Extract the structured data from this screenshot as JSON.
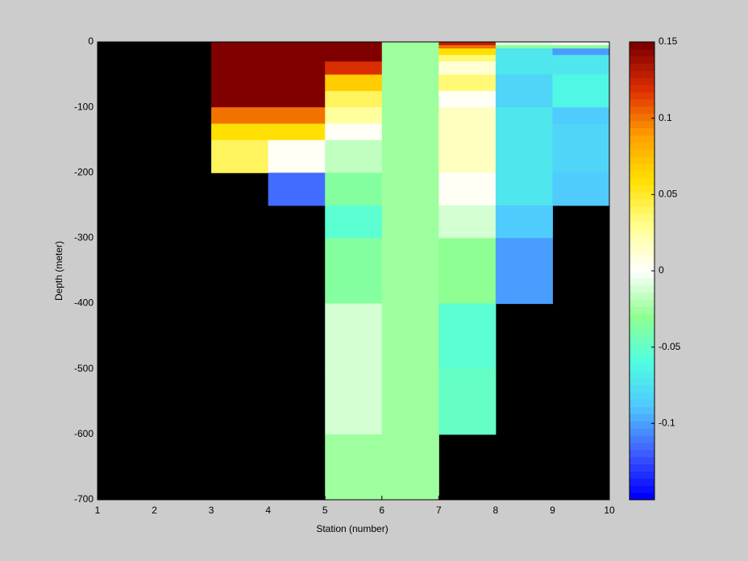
{
  "chart_data": {
    "type": "heatmap",
    "xlabel": "Station (number)",
    "ylabel": "Depth (meter)",
    "x_edges": [
      1,
      2,
      3,
      4,
      5,
      6,
      7,
      8,
      9,
      10
    ],
    "y_edges": [
      0,
      -5,
      -10,
      -20,
      -30,
      -50,
      -75,
      -100,
      -125,
      -150,
      -200,
      -250,
      -300,
      -400,
      -500,
      -600,
      -700
    ],
    "values": [
      [
        null,
        null,
        0.15,
        0.15,
        0.15,
        -0.025,
        0.13,
        -0.005,
        0
      ],
      [
        null,
        null,
        0.15,
        0.15,
        0.15,
        -0.025,
        0.1,
        -0.035,
        -0.035
      ],
      [
        null,
        null,
        0.15,
        0.15,
        0.15,
        -0.025,
        0.06,
        -0.075,
        -0.1
      ],
      [
        null,
        null,
        0.15,
        0.15,
        0.15,
        -0.025,
        0.035,
        -0.075,
        -0.075
      ],
      [
        null,
        null,
        0.15,
        0.15,
        0.12,
        -0.025,
        0.01,
        -0.075,
        -0.075
      ],
      [
        null,
        null,
        0.15,
        0.15,
        0.07,
        -0.025,
        0.035,
        -0.08,
        -0.065
      ],
      [
        null,
        null,
        0.15,
        0.15,
        0.04,
        -0.025,
        0.003,
        -0.08,
        -0.065
      ],
      [
        null,
        null,
        0.1,
        0.1,
        0.025,
        -0.025,
        0.015,
        -0.075,
        -0.085
      ],
      [
        null,
        null,
        0.06,
        0.06,
        0.002,
        -0.025,
        0.015,
        -0.075,
        -0.08
      ],
      [
        null,
        null,
        0.04,
        0,
        -0.015,
        -0.025,
        0.015,
        -0.075,
        -0.08
      ],
      [
        null,
        null,
        null,
        -0.115,
        -0.035,
        -0.025,
        0.003,
        -0.075,
        -0.085
      ],
      [
        null,
        null,
        null,
        null,
        -0.055,
        -0.025,
        -0.01,
        -0.085,
        null
      ],
      [
        null,
        null,
        null,
        null,
        -0.035,
        -0.025,
        -0.03,
        -0.1,
        null
      ],
      [
        null,
        null,
        null,
        null,
        -0.012,
        -0.025,
        -0.055,
        null,
        null
      ],
      [
        null,
        null,
        null,
        null,
        -0.012,
        -0.025,
        -0.05,
        null,
        null
      ],
      [
        null,
        null,
        null,
        null,
        -0.025,
        -0.025,
        null,
        null,
        null
      ]
    ],
    "xlim": [
      1,
      10
    ],
    "xticks": [
      1,
      2,
      3,
      4,
      5,
      6,
      7,
      8,
      9,
      10
    ],
    "ylim": [
      -700,
      0
    ],
    "yticks": [
      0,
      -100,
      -200,
      -300,
      -400,
      -500,
      -600,
      -700
    ],
    "clim": [
      -0.15,
      0.15
    ],
    "cticks": [
      0.15,
      0.1,
      0.05,
      0,
      -0.05,
      -0.1
    ],
    "colormap": [
      "#0000ff",
      "#4060ff",
      "#50c8ff",
      "#50ffe0",
      "#90ff90",
      "#ffffff",
      "#ffff90",
      "#ffe000",
      "#ffa000",
      "#e03000",
      "#800000"
    ],
    "colormap_levels": 64,
    "nan_color": "#000000"
  }
}
